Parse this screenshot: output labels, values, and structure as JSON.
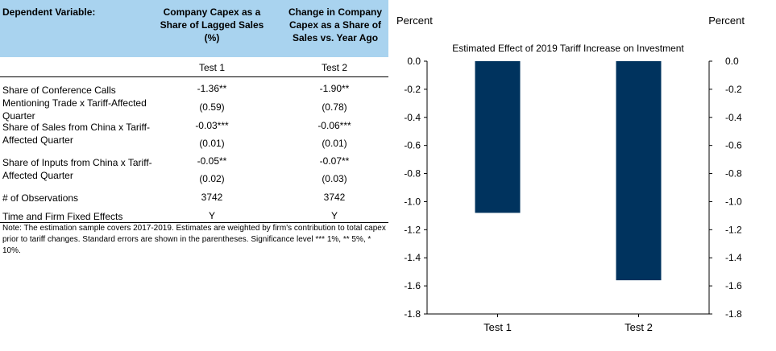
{
  "table": {
    "header": {
      "dependent_variable": "Dependent Variable:",
      "col1": "Company Capex as a Share of Lagged Sales (%)",
      "col2": "Change in Company Capex as a Share of Sales vs. Year Ago"
    },
    "tests": [
      "Test 1",
      "Test 2"
    ],
    "rows": [
      {
        "label": "Share of Conference Calls Mentioning Trade x Tariff-Affected Quarter",
        "v1": "-1.36**",
        "v2": "-1.90**",
        "se1": "(0.59)",
        "se2": "(0.78)"
      },
      {
        "label": "Share of Sales from China x Tariff-Affected Quarter",
        "v1": "-0.03***",
        "v2": "-0.06***",
        "se1": "(0.01)",
        "se2": "(0.01)"
      },
      {
        "label": "Share of Inputs from China x Tariff-Affected Quarter",
        "v1": "-0.05**",
        "v2": "-0.07**",
        "se1": "(0.02)",
        "se2": "(0.03)"
      }
    ],
    "observations": {
      "label": "# of Observations",
      "v1": "3742",
      "v2": "3742"
    },
    "fixed_effects": {
      "label": "Time and Firm Fixed Effects",
      "v1": "Y",
      "v2": "Y"
    },
    "note": "Note: The estimation sample covers 2017-2019. Estimates are weighted by firm's contribution to total capex prior to tariff changes. Standard errors are shown in the parentheses. Significance level *** 1%, ** 5%, * 10%."
  },
  "chart_data": {
    "type": "bar",
    "title": "Estimated  Effect of 2019 Tariff Increase on Investment",
    "left_unit": "Percent",
    "right_unit": "Percent",
    "categories": [
      "Test 1",
      "Test 2"
    ],
    "values": [
      -1.08,
      -1.56
    ],
    "ylim": [
      -1.8,
      0.0
    ],
    "yticks": [
      "0.0",
      "-0.2",
      "-0.4",
      "-0.6",
      "-0.8",
      "-1.0",
      "-1.2",
      "-1.4",
      "-1.6",
      "-1.8"
    ],
    "bar_color": "#00335e",
    "grid": false
  }
}
